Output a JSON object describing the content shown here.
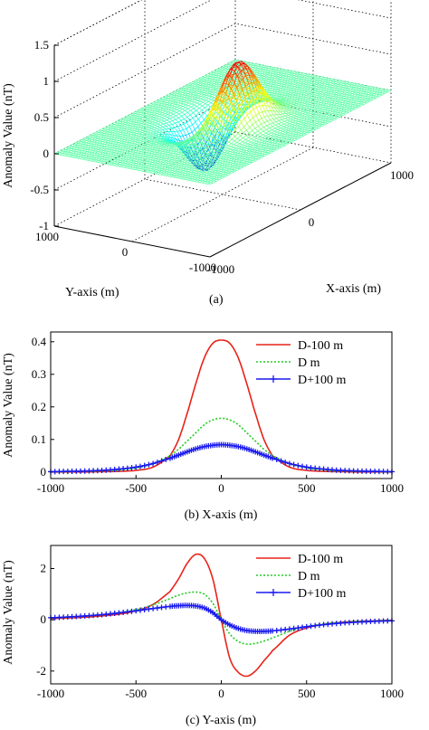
{
  "chart_data": [
    {
      "type": "surface",
      "caption": "(a)",
      "zlabel": "Anomaly Value (nT)",
      "xlabel": "X-axis (m)",
      "ylabel": "Y-axis (m)",
      "xlim": [
        -1000,
        1000
      ],
      "ylim": [
        -1000,
        1000
      ],
      "zlim": [
        -1,
        1.5
      ],
      "z_ticks": [
        "-1",
        "-0.5",
        "0",
        "0.5",
        "1",
        "1.5"
      ],
      "x_ticks": [
        "-1000",
        "0",
        "1000"
      ],
      "y_ticks": [
        "1000",
        "0",
        "-1000"
      ],
      "peak": {
        "x": 0,
        "y": -150,
        "z": 1.05
      },
      "trough": {
        "x": 0,
        "y": 150,
        "z": -0.9
      },
      "colormap": "jet",
      "grid": true
    },
    {
      "type": "line",
      "caption": "(b) X-axis (m)",
      "ylabel": "Anomaly Value (nT)",
      "xlim": [
        -1000,
        1000
      ],
      "ylim": [
        -0.02,
        0.43
      ],
      "x_ticks": [
        "-1000",
        "-500",
        "0",
        "500",
        "1000"
      ],
      "y_ticks": [
        "0",
        "0.1",
        "0.2",
        "0.3",
        "0.4"
      ],
      "legend_position": "top-right",
      "x": [
        -1000,
        -900,
        -800,
        -700,
        -600,
        -500,
        -400,
        -300,
        -250,
        -200,
        -150,
        -100,
        -50,
        0,
        50,
        100,
        150,
        200,
        250,
        300,
        400,
        500,
        600,
        700,
        800,
        900,
        1000
      ],
      "series": [
        {
          "name": "D-100 m",
          "color": "#e8231a",
          "style": "solid",
          "values": [
            0.0,
            0.0,
            0.0,
            0.001,
            0.002,
            0.005,
            0.015,
            0.05,
            0.1,
            0.18,
            0.27,
            0.35,
            0.395,
            0.405,
            0.395,
            0.35,
            0.27,
            0.18,
            0.1,
            0.05,
            0.015,
            0.005,
            0.002,
            0.001,
            0.0,
            0.0,
            0.0
          ]
        },
        {
          "name": "D m",
          "color": "#22cc22",
          "style": "dotted",
          "values": [
            0.0,
            0.001,
            0.002,
            0.003,
            0.006,
            0.012,
            0.025,
            0.05,
            0.07,
            0.095,
            0.12,
            0.145,
            0.16,
            0.165,
            0.16,
            0.145,
            0.12,
            0.095,
            0.07,
            0.05,
            0.025,
            0.012,
            0.006,
            0.003,
            0.002,
            0.001,
            0.0
          ]
        },
        {
          "name": "D+100 m",
          "color": "#1a1aee",
          "style": "plus",
          "values": [
            0.001,
            0.002,
            0.003,
            0.005,
            0.009,
            0.015,
            0.026,
            0.042,
            0.052,
            0.062,
            0.071,
            0.078,
            0.082,
            0.084,
            0.082,
            0.078,
            0.071,
            0.062,
            0.052,
            0.042,
            0.026,
            0.015,
            0.009,
            0.005,
            0.003,
            0.002,
            0.001
          ]
        }
      ]
    },
    {
      "type": "line",
      "caption": "(c) Y-axis (m)",
      "ylabel": "Anomaly Value (nT)",
      "xlim": [
        -1000,
        1000
      ],
      "ylim": [
        -2.5,
        2.9
      ],
      "x_ticks": [
        "-1000",
        "-500",
        "0",
        "500",
        "1000"
      ],
      "y_ticks": [
        "-2",
        "0",
        "2"
      ],
      "legend_position": "top-right",
      "x": [
        -1000,
        -900,
        -800,
        -700,
        -600,
        -500,
        -400,
        -300,
        -250,
        -200,
        -150,
        -100,
        -50,
        0,
        50,
        100,
        150,
        200,
        250,
        300,
        400,
        500,
        600,
        700,
        800,
        900,
        1000
      ],
      "series": [
        {
          "name": "D-100 m",
          "color": "#e8231a",
          "style": "solid",
          "values": [
            0.05,
            0.07,
            0.1,
            0.15,
            0.22,
            0.35,
            0.6,
            1.1,
            1.6,
            2.2,
            2.55,
            2.4,
            1.6,
            0.0,
            -1.5,
            -2.05,
            -2.2,
            -2.0,
            -1.6,
            -1.2,
            -0.6,
            -0.32,
            -0.18,
            -0.1,
            -0.06,
            -0.04,
            -0.02
          ]
        },
        {
          "name": "D m",
          "color": "#22cc22",
          "style": "dotted",
          "values": [
            0.07,
            0.1,
            0.14,
            0.2,
            0.28,
            0.4,
            0.58,
            0.82,
            0.96,
            1.05,
            1.08,
            1.0,
            0.65,
            0.0,
            -0.55,
            -0.85,
            -0.95,
            -0.92,
            -0.83,
            -0.7,
            -0.45,
            -0.27,
            -0.16,
            -0.1,
            -0.06,
            -0.04,
            -0.02
          ]
        },
        {
          "name": "D+100 m",
          "color": "#1a1aee",
          "style": "plus",
          "values": [
            0.08,
            0.11,
            0.15,
            0.2,
            0.27,
            0.35,
            0.44,
            0.52,
            0.55,
            0.56,
            0.54,
            0.46,
            0.28,
            0.0,
            -0.2,
            -0.34,
            -0.42,
            -0.45,
            -0.45,
            -0.43,
            -0.36,
            -0.27,
            -0.19,
            -0.13,
            -0.09,
            -0.06,
            -0.04
          ]
        }
      ]
    }
  ]
}
